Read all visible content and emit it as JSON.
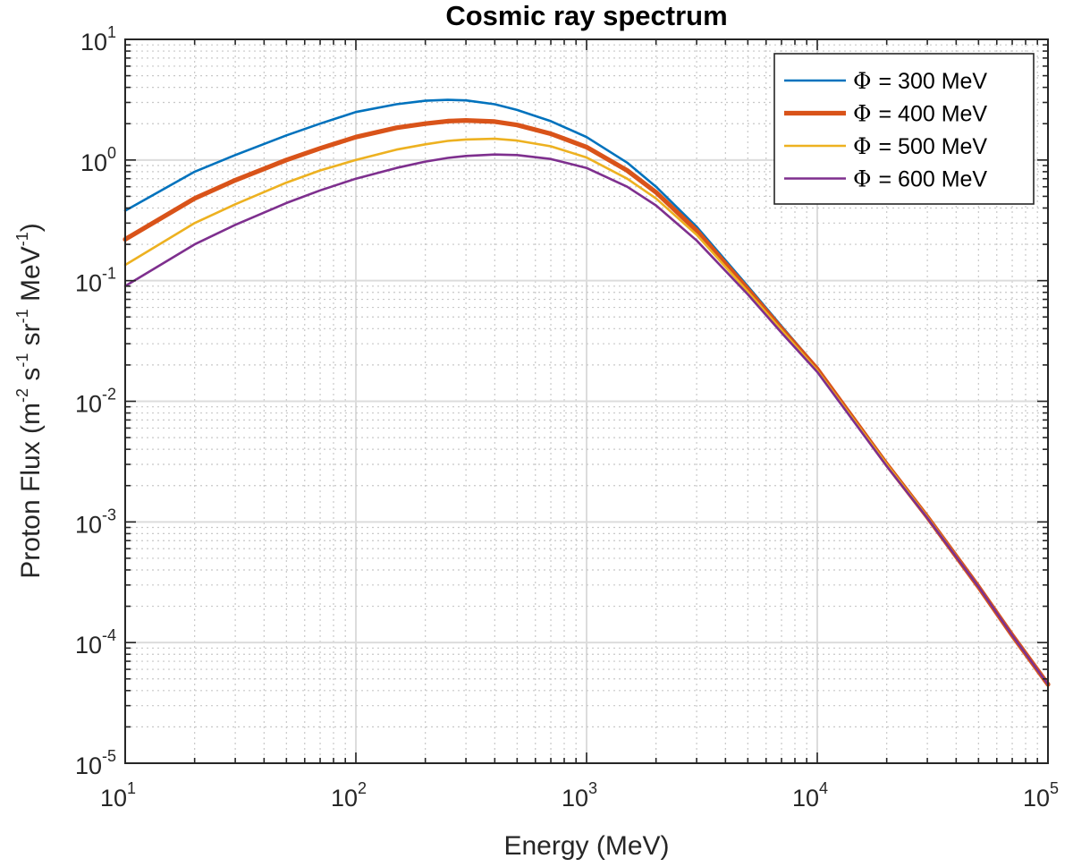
{
  "chart_data": {
    "type": "line",
    "title": "Cosmic ray spectrum",
    "xlabel": "Energy (MeV)",
    "ylabel": {
      "prefix": "Proton Flux  (m",
      "e1": "-2",
      "mid1": " s",
      "e2": "-1",
      "mid2": " sr",
      "e3": "-1",
      "mid3": " MeV",
      "e4": "-1",
      "suffix": ")"
    },
    "xscale": "log",
    "yscale": "log",
    "xlim": [
      10,
      100000
    ],
    "ylim": [
      1e-05,
      10
    ],
    "xticks": [
      {
        "base": "10",
        "exp": "1"
      },
      {
        "base": "10",
        "exp": "2"
      },
      {
        "base": "10",
        "exp": "3"
      },
      {
        "base": "10",
        "exp": "4"
      },
      {
        "base": "10",
        "exp": "5"
      }
    ],
    "yticks": [
      {
        "base": "10",
        "exp": "1"
      },
      {
        "base": "10",
        "exp": "0"
      },
      {
        "base": "10",
        "exp": "-1"
      },
      {
        "base": "10",
        "exp": "-2"
      },
      {
        "base": "10",
        "exp": "-3"
      },
      {
        "base": "10",
        "exp": "-4"
      },
      {
        "base": "10",
        "exp": "-5"
      }
    ],
    "grid": "on (major and minor)",
    "legend_position": "top-right",
    "x": [
      10,
      20,
      30,
      50,
      70,
      100,
      150,
      200,
      250,
      300,
      400,
      500,
      700,
      1000,
      1500,
      2000,
      3000,
      5000,
      7000,
      10000,
      20000,
      30000,
      50000,
      70000,
      100000
    ],
    "series": [
      {
        "name": "= 300 MeV",
        "symbol": "Φ",
        "color": "#0072BD",
        "values": [
          0.38,
          0.8,
          1.1,
          1.6,
          2.0,
          2.5,
          2.9,
          3.1,
          3.15,
          3.12,
          2.9,
          2.6,
          2.1,
          1.55,
          0.95,
          0.6,
          0.28,
          0.09,
          0.042,
          0.019,
          0.0031,
          0.0011,
          0.00029,
          0.000115,
          4.5e-05
        ]
      },
      {
        "name": "= 400 MeV",
        "symbol": "Φ",
        "color": "#D95319",
        "values": [
          0.22,
          0.48,
          0.68,
          1.0,
          1.25,
          1.55,
          1.85,
          2.0,
          2.1,
          2.13,
          2.08,
          1.95,
          1.65,
          1.28,
          0.82,
          0.54,
          0.26,
          0.085,
          0.04,
          0.0185,
          0.003,
          0.0011,
          0.00029,
          0.000115,
          4.5e-05
        ]
      },
      {
        "name": "= 500 MeV",
        "symbol": "Φ",
        "color": "#EDB120",
        "values": [
          0.135,
          0.3,
          0.43,
          0.65,
          0.82,
          1.0,
          1.22,
          1.35,
          1.44,
          1.48,
          1.5,
          1.45,
          1.3,
          1.05,
          0.7,
          0.48,
          0.24,
          0.081,
          0.039,
          0.018,
          0.003,
          0.0011,
          0.00029,
          0.000115,
          4.5e-05
        ]
      },
      {
        "name": "= 600 MeV",
        "symbol": "Φ",
        "color": "#7E2F8E",
        "values": [
          0.09,
          0.2,
          0.29,
          0.44,
          0.56,
          0.7,
          0.86,
          0.97,
          1.04,
          1.08,
          1.11,
          1.1,
          1.02,
          0.86,
          0.6,
          0.42,
          0.215,
          0.077,
          0.037,
          0.0175,
          0.0029,
          0.00108,
          0.00029,
          0.000115,
          4.5e-05
        ]
      }
    ]
  }
}
